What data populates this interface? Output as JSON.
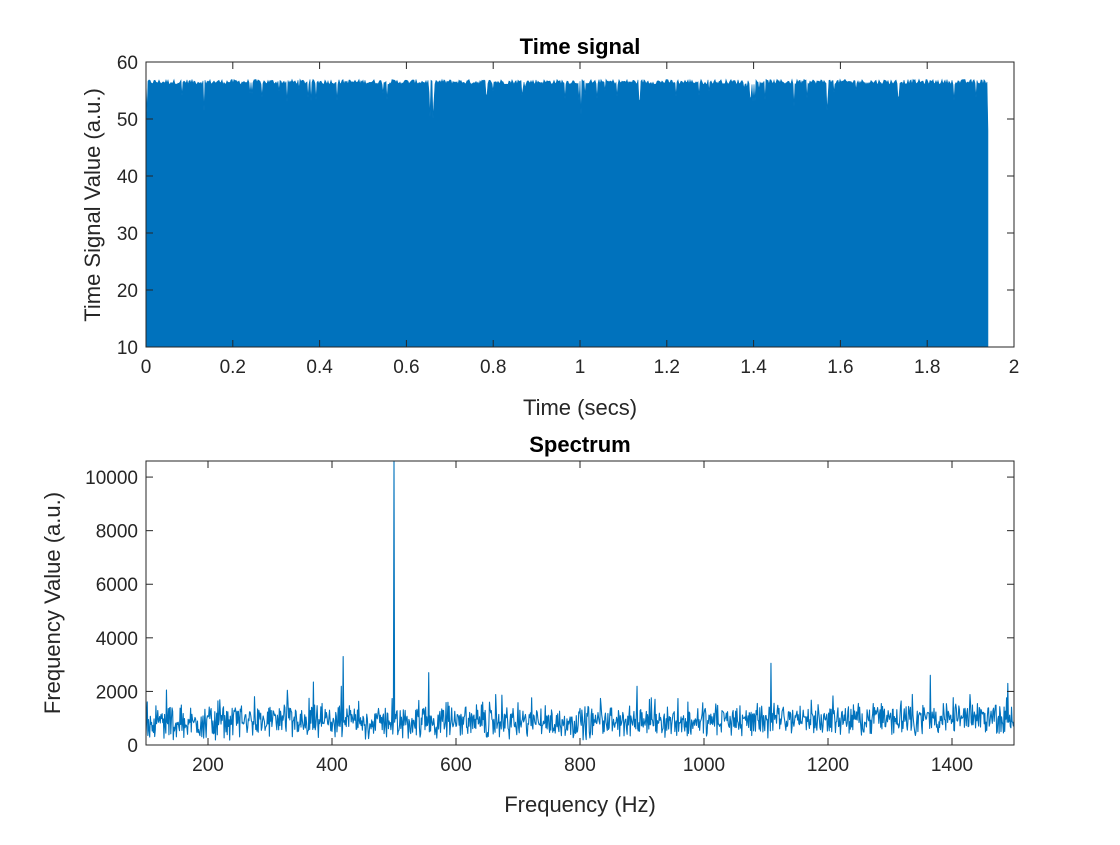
{
  "chart_data": [
    {
      "type": "line",
      "title": "Time signal",
      "xlabel": "Time (secs)",
      "ylabel": "Time Signal Value (a.u.)",
      "xlim": [
        0,
        2
      ],
      "ylim": [
        10,
        60
      ],
      "xticks": [
        0,
        0.2,
        0.4,
        0.6,
        0.8,
        1,
        1.2,
        1.4,
        1.6,
        1.8,
        2
      ],
      "xtick_labels": [
        "0",
        "0.2",
        "0.4",
        "0.6",
        "0.8",
        "1",
        "1.2",
        "1.4",
        "1.6",
        "1.8",
        "2"
      ],
      "yticks": [
        10,
        20,
        30,
        40,
        50,
        60
      ],
      "ytick_labels": [
        "10",
        "20",
        "30",
        "40",
        "50",
        "60"
      ],
      "grid": false,
      "series": [
        {
          "name": "time signal",
          "color": "#0072BD",
          "x_range": [
            0,
            1.94
          ],
          "value_range": [
            10,
            57
          ],
          "description_values": {
            "min": 10,
            "max": 57,
            "typical_top": 56.5
          }
        }
      ]
    },
    {
      "type": "line",
      "title": "Spectrum",
      "xlabel": "Frequency (Hz)",
      "ylabel": "Frequency Value (a.u.)",
      "xlim": [
        100,
        1500
      ],
      "ylim": [
        0,
        10600
      ],
      "xticks": [
        200,
        400,
        600,
        800,
        1000,
        1200,
        1400
      ],
      "xtick_labels": [
        "200",
        "400",
        "600",
        "800",
        "1000",
        "1200",
        "1400"
      ],
      "yticks": [
        0,
        2000,
        4000,
        6000,
        8000,
        10000
      ],
      "ytick_labels": [
        "0",
        "2000",
        "4000",
        "6000",
        "8000",
        "10000"
      ],
      "grid": false,
      "series": [
        {
          "name": "spectrum",
          "color": "#0072BD",
          "noise_floor": {
            "mean": 850,
            "min": 150,
            "max": 2200
          },
          "peaks": [
            {
              "x": 133,
              "y": 2050
            },
            {
              "x": 370,
              "y": 2350
            },
            {
              "x": 418,
              "y": 3300
            },
            {
              "x": 500,
              "y": 10600
            },
            {
              "x": 556,
              "y": 2700
            },
            {
              "x": 1108,
              "y": 3050
            },
            {
              "x": 1365,
              "y": 2600
            },
            {
              "x": 1490,
              "y": 2300
            }
          ]
        }
      ]
    }
  ]
}
